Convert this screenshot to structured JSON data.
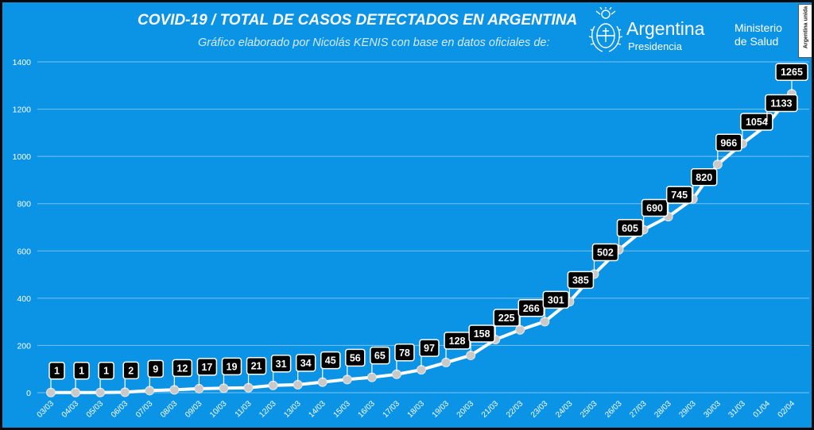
{
  "header": {
    "title": "COVID-19  /  TOTAL DE CASOS DETECTADOS EN ARGENTINA",
    "subtitle": "Gráfico elaborado por Nicolás KENIS con base en datos oficiales de:"
  },
  "logos": {
    "argentina": "Argentina",
    "presidencia": "Presidencia",
    "ministerio_line1": "Ministerio",
    "ministerio_line2": "de Salud",
    "badge": "Argentina unida"
  },
  "colors": {
    "background": "#0b93e6",
    "line": "#ffffff",
    "marker": "#c9c9c9",
    "label_bg": "#000000",
    "label_text": "#ffffff"
  },
  "chart_data": {
    "type": "line",
    "x": [
      "03/03",
      "04/03",
      "05/03",
      "06/03",
      "07/03",
      "08/03",
      "09/03",
      "10/03",
      "11/03",
      "12/03",
      "13/03",
      "14/03",
      "15/03",
      "16/03",
      "17/03",
      "18/03",
      "19/03",
      "20/03",
      "21/03",
      "22/03",
      "23/03",
      "24/03",
      "25/03",
      "26/03",
      "27/03",
      "28/03",
      "29/03",
      "30/03",
      "31/03",
      "01/04",
      "02/04"
    ],
    "values": [
      1,
      1,
      1,
      2,
      9,
      12,
      17,
      19,
      21,
      31,
      34,
      45,
      56,
      65,
      78,
      97,
      128,
      158,
      225,
      266,
      301,
      385,
      502,
      605,
      690,
      745,
      820,
      966,
      1054,
      1133,
      1265
    ],
    "ylim": [
      0,
      1400
    ],
    "yticks": [
      0,
      200,
      400,
      600,
      800,
      1000,
      1200,
      1400
    ],
    "grid": true,
    "data_labels": true
  }
}
